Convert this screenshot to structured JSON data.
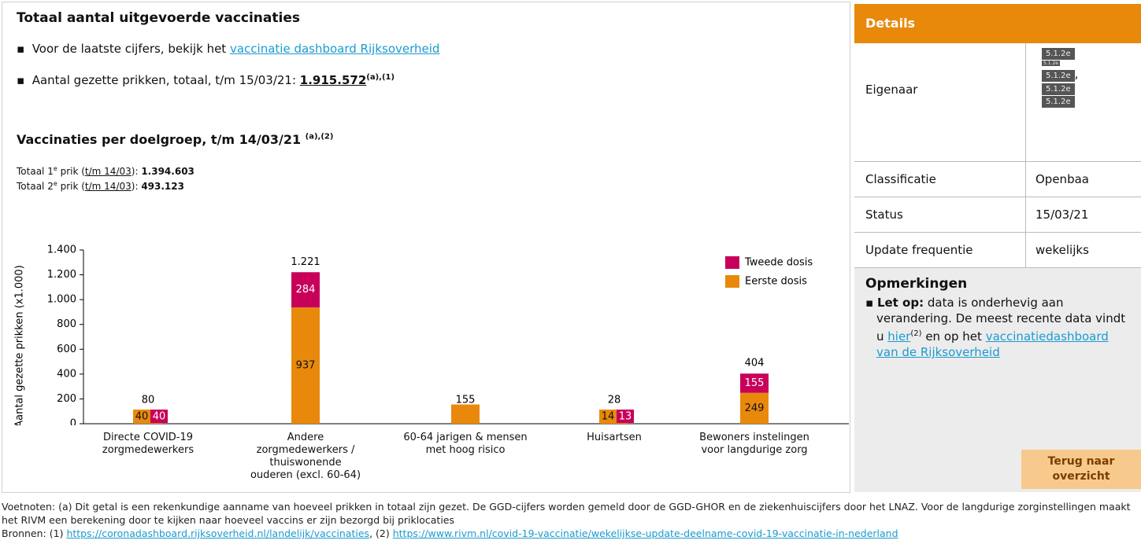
{
  "header": {
    "title": "Totaal aantal uitgevoerde vaccinaties",
    "bullet1": {
      "text": "Voor de laatste cijfers, bekijk het",
      "link": "vaccinatie dashboard Rijksoverheid"
    },
    "bullet2": {
      "text": "Aantal gezette prikken, totaal, t/m 15/03/21:",
      "value": "1.915.572",
      "sup": "(a),(1)"
    }
  },
  "section": {
    "title": "Vaccinaties per doelgroep, t/m 14/03/21",
    "sup": "(a),(2)",
    "lines": [
      {
        "pre": "Totaal 1",
        "sup": "e",
        "mid": "prik (",
        "link": "t/m 14/03",
        "post": "):",
        "value": "1.394.603"
      },
      {
        "pre": "Totaal 2",
        "sup": "e",
        "mid": "prik (",
        "link": "t/m 14/03",
        "post": "):",
        "value": "493.123"
      }
    ]
  },
  "chart_data": {
    "type": "stacked-bar",
    "ylabel": "Aantal gezette prikken (x1.000)",
    "categories": [
      "Directe COVID-19\nzorgmedewerkers",
      "Andere\nzorgmedewerkers /\nthuiswonende\nouderen (excl. 60-64)",
      "60-64 jarigen & mensen\nmet hoog risico",
      "Huisartsen",
      "Bewoners instelingen\nvoor langdurige zorg"
    ],
    "series": [
      {
        "name": "Eerste dosis",
        "color": "#e8890c",
        "values": [
          40,
          937,
          155,
          14,
          249
        ],
        "label_shown": [
          true,
          true,
          false,
          true,
          true
        ]
      },
      {
        "name": "Tweede dosis",
        "color": "#c8005a",
        "values": [
          40,
          284,
          null,
          13,
          155
        ],
        "label_shown": [
          true,
          true,
          false,
          true,
          true
        ]
      }
    ],
    "totals": {
      "values": [
        80,
        1221,
        155,
        28,
        404
      ],
      "value_labels": [
        "80",
        "1.221",
        "155",
        "28",
        "404"
      ]
    },
    "ylim": [
      0,
      1400
    ],
    "yticks": [
      0,
      200,
      400,
      600,
      800,
      {
        "value": 1000,
        "label": "1.000"
      },
      {
        "value": 1200,
        "label": "1.200"
      },
      {
        "value": 1400,
        "label": "1.400"
      }
    ],
    "legend": "top-right"
  },
  "details": {
    "title": "Details",
    "owner": {
      "label": "Eigenaar",
      "redactions": [
        "5.1.2e",
        "5.1.2e",
        "5.1.2e",
        "5.1.2e",
        "5.1.2e"
      ],
      "sep": ","
    },
    "rows": [
      {
        "label": "Classificatie",
        "value": "Openbaa"
      },
      {
        "label": "Status",
        "value": "15/03/21"
      },
      {
        "label": "Update frequentie",
        "value": "wekelijks"
      }
    ]
  },
  "notes": {
    "title": "Opmerkingen",
    "bold": "Let op:",
    "text1": "data is onderhevig aan verandering. De meest recente data vindt u",
    "link1": "hier",
    "sup": "(2)",
    "text2": "en op het",
    "link2": "vaccinatiedashboard van de Rijksoverheid"
  },
  "button": "Terug naar overzicht",
  "footnotes": {
    "text": "Voetnoten: (a) Dit getal is een rekenkundige aanname van hoeveel prikken in totaal zijn gezet. De GGD-cijfers worden gemeld door de GGD-GHOR en de ziekenhuiscijfers door het LNAZ. Voor de langdurige zorginstellingen maakt het RIVM een berekening door te kijken naar hoeveel vaccins er zijn bezorgd bij priklocaties",
    "sources_label": "Bronnen:",
    "sources": [
      {
        "label": "(1)",
        "url": "https://coronadashboard.rijksoverheid.nl/landelijk/vaccinaties"
      },
      {
        "label": "(2)",
        "url": "https://www.rivm.nl/covid-19-vaccinatie/wekelijkse-update-deelname-covid-19-vaccinatie-in-nederland"
      }
    ]
  }
}
